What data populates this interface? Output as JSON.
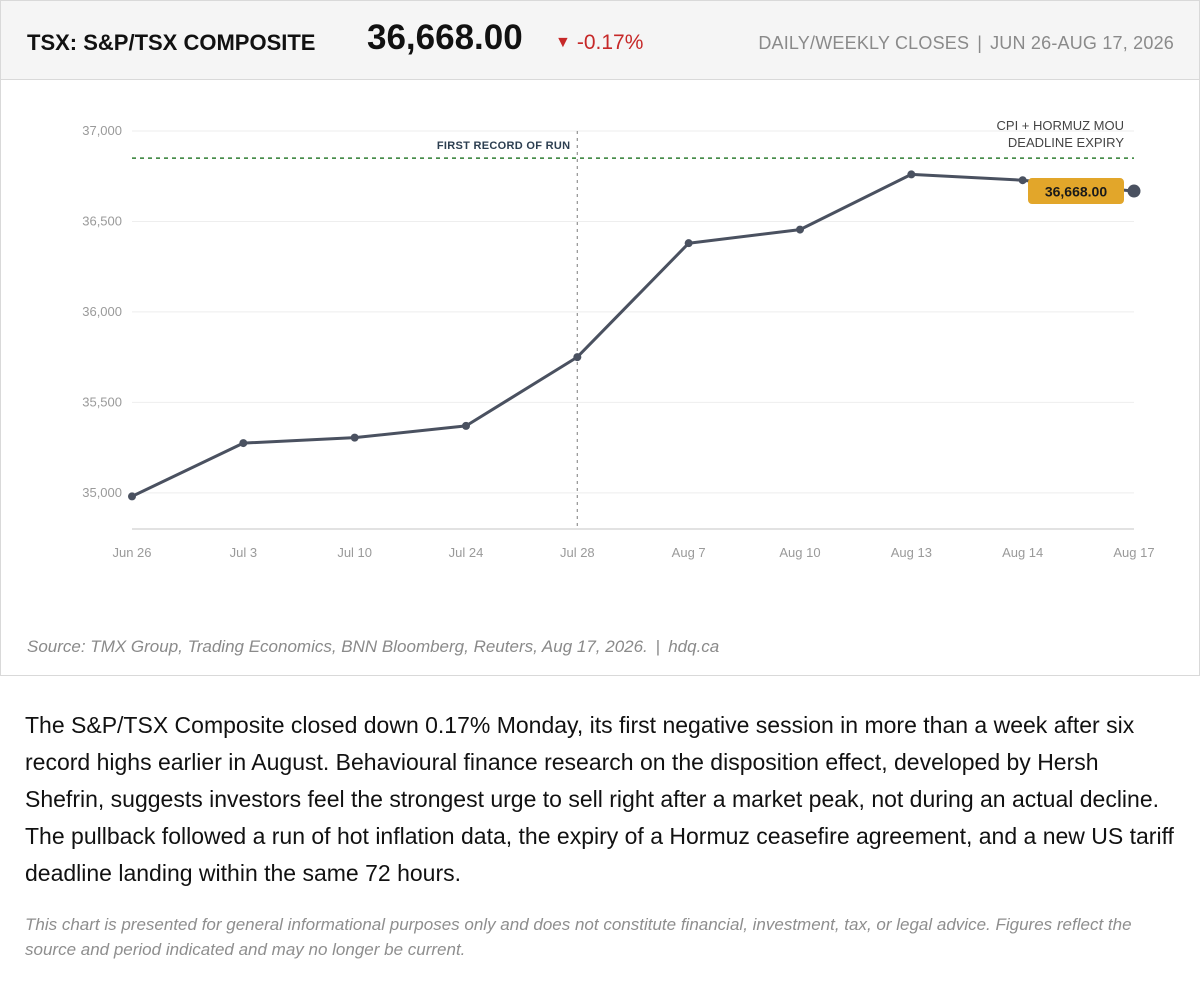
{
  "header": {
    "ticker": "TSX: S&P/TSX COMPOSITE",
    "price": "36,668.00",
    "change_arrow": "▼",
    "change": "-0.17%",
    "period_label": "DAILY/WEEKLY CLOSES",
    "period_sep": "|",
    "period_range": "JUN 26-AUG 17, 2026"
  },
  "colors": {
    "line": "#4a5160",
    "record_line": "#2e7d32",
    "badge": "#e2a62a",
    "negative": "#c62828",
    "grid": "#eeeeee"
  },
  "chart_data": {
    "type": "line",
    "categories": [
      "Jun 26",
      "Jul 3",
      "Jul 10",
      "Jul 24",
      "Jul 28",
      "Aug 7",
      "Aug 10",
      "Aug 13",
      "Aug 14",
      "Aug 17"
    ],
    "series": [
      {
        "values": [
          34980,
          35275,
          35305,
          35370,
          35750,
          36380,
          36455,
          36760,
          36728,
          36668
        ]
      }
    ],
    "ylim": [
      34800,
      37000
    ],
    "yticks": [
      35000,
      35500,
      36000,
      36500,
      37000
    ],
    "ytick_labels": [
      "35,000",
      "35,500",
      "36,000",
      "36,500",
      "37,000"
    ],
    "grid": true,
    "record_level": 36850,
    "vline_category": "Jul 28",
    "vline_label": "FIRST RECORD OF RUN",
    "event_label_line1": "CPI + HORMUZ MOU",
    "event_label_line2": "DEADLINE EXPIRY",
    "last_value_label": "36,668.00"
  },
  "source": {
    "text": "Source: TMX Group, Trading Economics, BNN Bloomberg, Reuters, Aug 17, 2026.",
    "sep": "|",
    "site": "hdq.ca"
  },
  "body": "The S&P/TSX Composite closed down 0.17% Monday, its first negative session in more than a week after six record highs earlier in August. Behavioural finance research on the disposition effect, developed by Hersh Shefrin, suggests investors feel the strongest urge to sell right after a market peak, not during an actual decline. The pullback followed a run of hot inflation data, the expiry of a Hormuz ceasefire agreement, and a new US tariff deadline landing within the same 72 hours.",
  "disclaimer": "This chart is presented for general informational purposes only and does not constitute financial, investment, tax, or legal advice. Figures reflect the source and period indicated and may no longer be current."
}
